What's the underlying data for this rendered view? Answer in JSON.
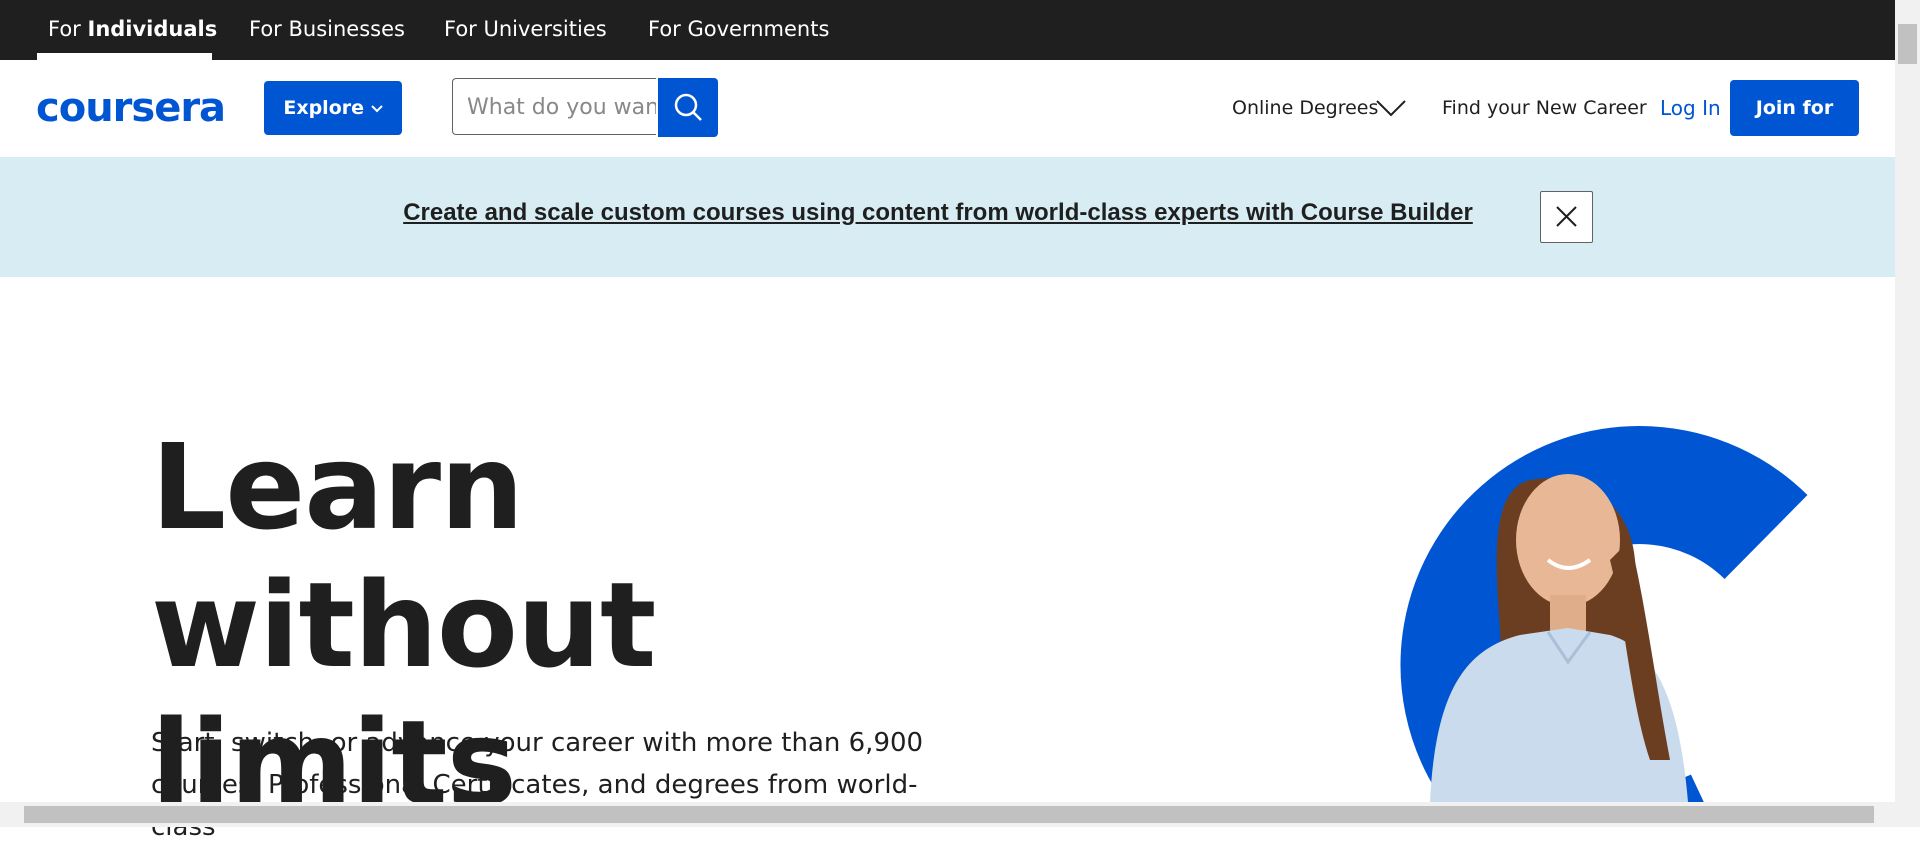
{
  "top_nav": {
    "tabs": [
      {
        "prefix": "For",
        "bold": "Individuals"
      },
      {
        "label": "For Businesses"
      },
      {
        "label": "For Universities"
      },
      {
        "label": "For Governments"
      }
    ]
  },
  "header": {
    "logo": "coursera",
    "explore": "Explore",
    "search_placeholder": "What do you want",
    "links": [
      "Online Degrees",
      "Find your New Career"
    ],
    "login": "Log In",
    "join": "Join for Free"
  },
  "banner": {
    "text": "Create and scale custom courses using content from world-class experts with Course Builder"
  },
  "hero": {
    "title": "Learn without limits",
    "subtitle": "Start, switch, or advance your career with more than 6,900 courses, Professional Certificates, and degrees from world-class"
  }
}
